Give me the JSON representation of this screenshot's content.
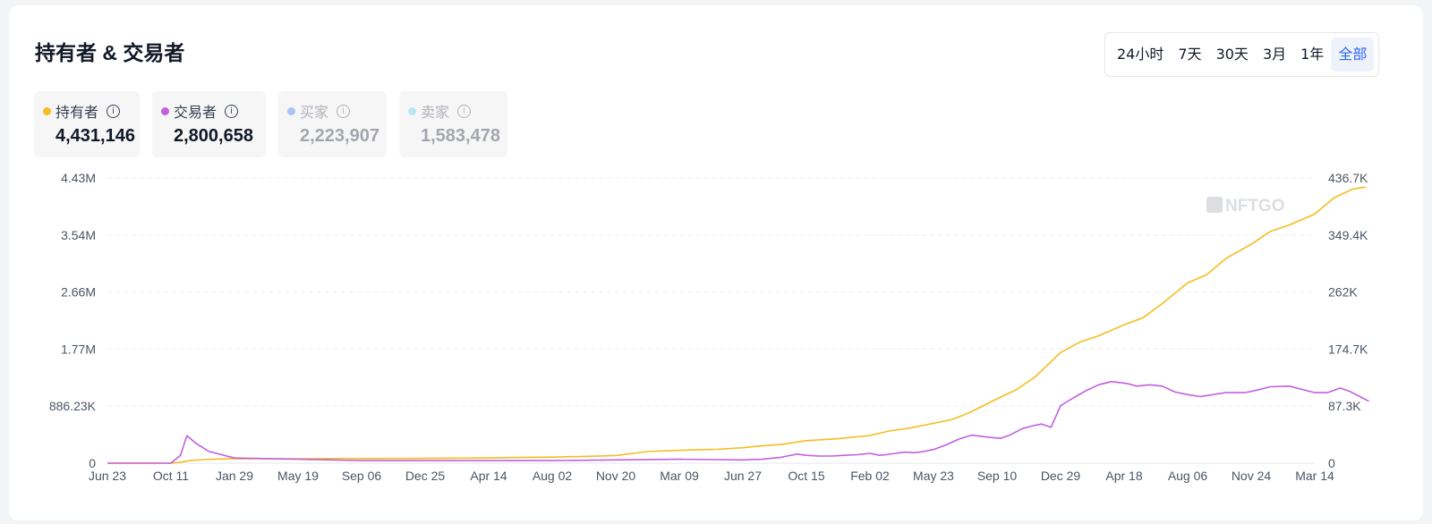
{
  "title": "持有者 & 交易者",
  "time_range": {
    "options": [
      "24小时",
      "7天",
      "30天",
      "3月",
      "1年",
      "全部"
    ],
    "active": "全部"
  },
  "stats": [
    {
      "label": "持有者",
      "value": "4,431,146",
      "color": "#f5bd1f",
      "active": true
    },
    {
      "label": "交易者",
      "value": "2,800,658",
      "color": "#c160e0",
      "active": true
    },
    {
      "label": "买家",
      "value": "2,223,907",
      "color": "#a8c4f5",
      "active": false
    },
    {
      "label": "卖家",
      "value": "1,583,478",
      "color": "#b8e6f4",
      "active": false
    }
  ],
  "watermark": "NFTGO",
  "chart_data": {
    "type": "line",
    "x_ticks": [
      "Jun 23",
      "Oct 11",
      "Jan 29",
      "May 19",
      "Sep 06",
      "Dec 25",
      "Apr 14",
      "Aug 02",
      "Nov 20",
      "Mar 09",
      "Jun 27",
      "Oct 15",
      "Feb 02",
      "May 23",
      "Sep 10",
      "Dec 29",
      "Apr 18",
      "Aug 06",
      "Nov 24",
      "Mar 14"
    ],
    "y_left_ticks": [
      "0",
      "886.23K",
      "1.77M",
      "2.66M",
      "3.54M",
      "4.43M"
    ],
    "y_right_ticks": [
      "0",
      "87.3K",
      "174.7K",
      "262K",
      "349.4K",
      "436.7K"
    ],
    "y_left_range": [
      0,
      4431146
    ],
    "y_right_range": [
      0,
      436700
    ],
    "grid": true,
    "series": [
      {
        "name": "持有者",
        "axis": "left",
        "color": "#f5bd1f",
        "x": [
          0,
          1.0,
          1.15,
          1.3,
          1.5,
          1.75,
          2,
          3,
          4,
          5,
          6,
          7,
          7.5,
          8,
          8.5,
          9,
          9.3,
          9.6,
          10,
          10.3,
          10.6,
          11,
          11.5,
          12,
          12.3,
          12.6,
          13,
          13.3,
          13.6,
          14,
          14.3,
          14.6,
          15,
          15.3,
          15.6,
          16,
          16.3,
          16.6,
          17,
          17.3,
          17.6,
          18,
          18.3,
          18.6,
          19,
          19.3,
          19.6,
          19.8
        ],
        "y": [
          0,
          0,
          15000,
          40000,
          55000,
          65000,
          68000,
          70000,
          72000,
          75000,
          82000,
          95000,
          105000,
          120000,
          180000,
          200000,
          210000,
          215000,
          240000,
          270000,
          290000,
          350000,
          380000,
          430000,
          500000,
          540000,
          620000,
          680000,
          800000,
          1000000,
          1140000,
          1340000,
          1720000,
          1880000,
          1980000,
          2150000,
          2260000,
          2480000,
          2800000,
          2930000,
          3180000,
          3400000,
          3600000,
          3700000,
          3870000,
          4120000,
          4260000,
          4290000
        ]
      },
      {
        "name": "交易者",
        "axis": "right",
        "color": "#c160e0",
        "x": [
          0,
          1,
          1.15,
          1.25,
          1.4,
          1.6,
          2,
          3,
          4,
          5,
          6,
          7,
          8,
          9,
          10,
          10.3,
          10.6,
          10.85,
          11,
          11.2,
          11.4,
          11.6,
          11.8,
          12,
          12.15,
          12.25,
          12.4,
          12.55,
          12.7,
          12.85,
          13,
          13.2,
          13.4,
          13.6,
          13.85,
          14.05,
          14.2,
          14.4,
          14.55,
          14.7,
          14.85,
          15,
          15.2,
          15.4,
          15.6,
          15.8,
          16.05,
          16.2,
          16.4,
          16.6,
          16.8,
          17,
          17.2,
          17.6,
          17.9,
          18.1,
          18.3,
          18.6,
          18.8,
          19,
          19.2,
          19.4,
          19.55,
          19.75,
          19.85
        ],
        "y": [
          0,
          0,
          12000,
          42000,
          30000,
          18000,
          8000,
          6000,
          4000,
          4000,
          4000,
          4000,
          5000,
          6000,
          5000,
          6000,
          9000,
          14000,
          12000,
          11000,
          11000,
          12000,
          13000,
          15000,
          12000,
          13000,
          15000,
          17000,
          16000,
          18000,
          21000,
          28000,
          37000,
          43000,
          40000,
          38000,
          43000,
          53000,
          57000,
          60000,
          55000,
          88000,
          100000,
          111000,
          120000,
          125000,
          122000,
          118000,
          120000,
          118000,
          109000,
          105000,
          102000,
          108000,
          108000,
          112000,
          117000,
          118000,
          113000,
          108000,
          108000,
          115000,
          110000,
          100000,
          95000
        ]
      }
    ]
  }
}
